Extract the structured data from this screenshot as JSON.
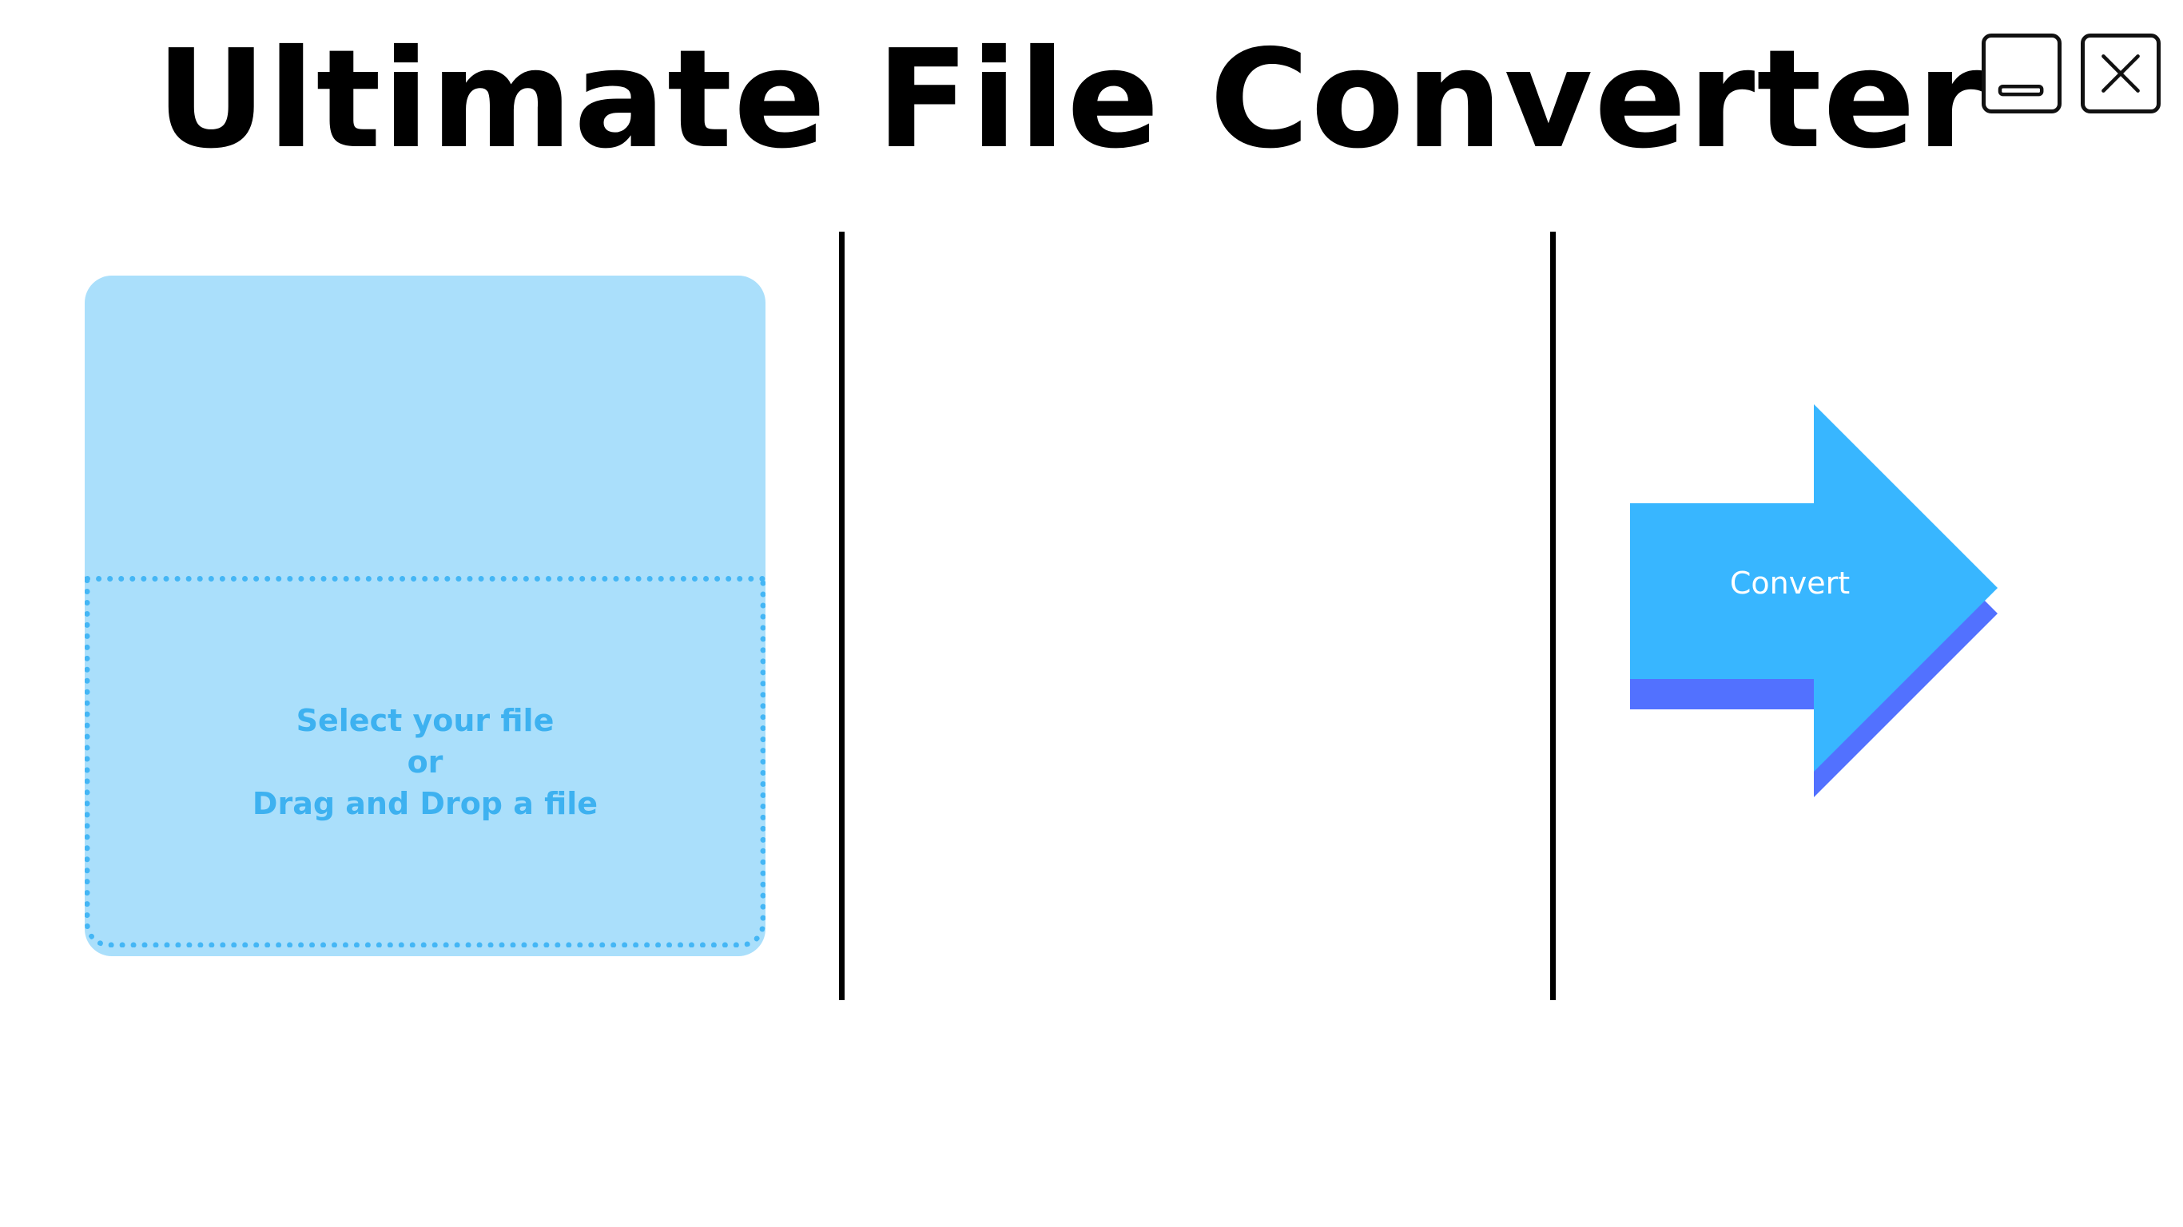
{
  "header": {
    "title": "Ultimate File Converter"
  },
  "window_controls": {
    "minimize_icon": "minimize-icon",
    "close_icon": "close-icon"
  },
  "drop_zone": {
    "line1": "Select your file",
    "line2": "or",
    "line3": "Drag and Drop a file"
  },
  "convert": {
    "label": "Convert"
  },
  "colors": {
    "panel_bg": "#aadffb",
    "accent_text": "#3db1f0",
    "arrow_fill": "#38b6ff",
    "arrow_shadow": "#5271ff"
  }
}
